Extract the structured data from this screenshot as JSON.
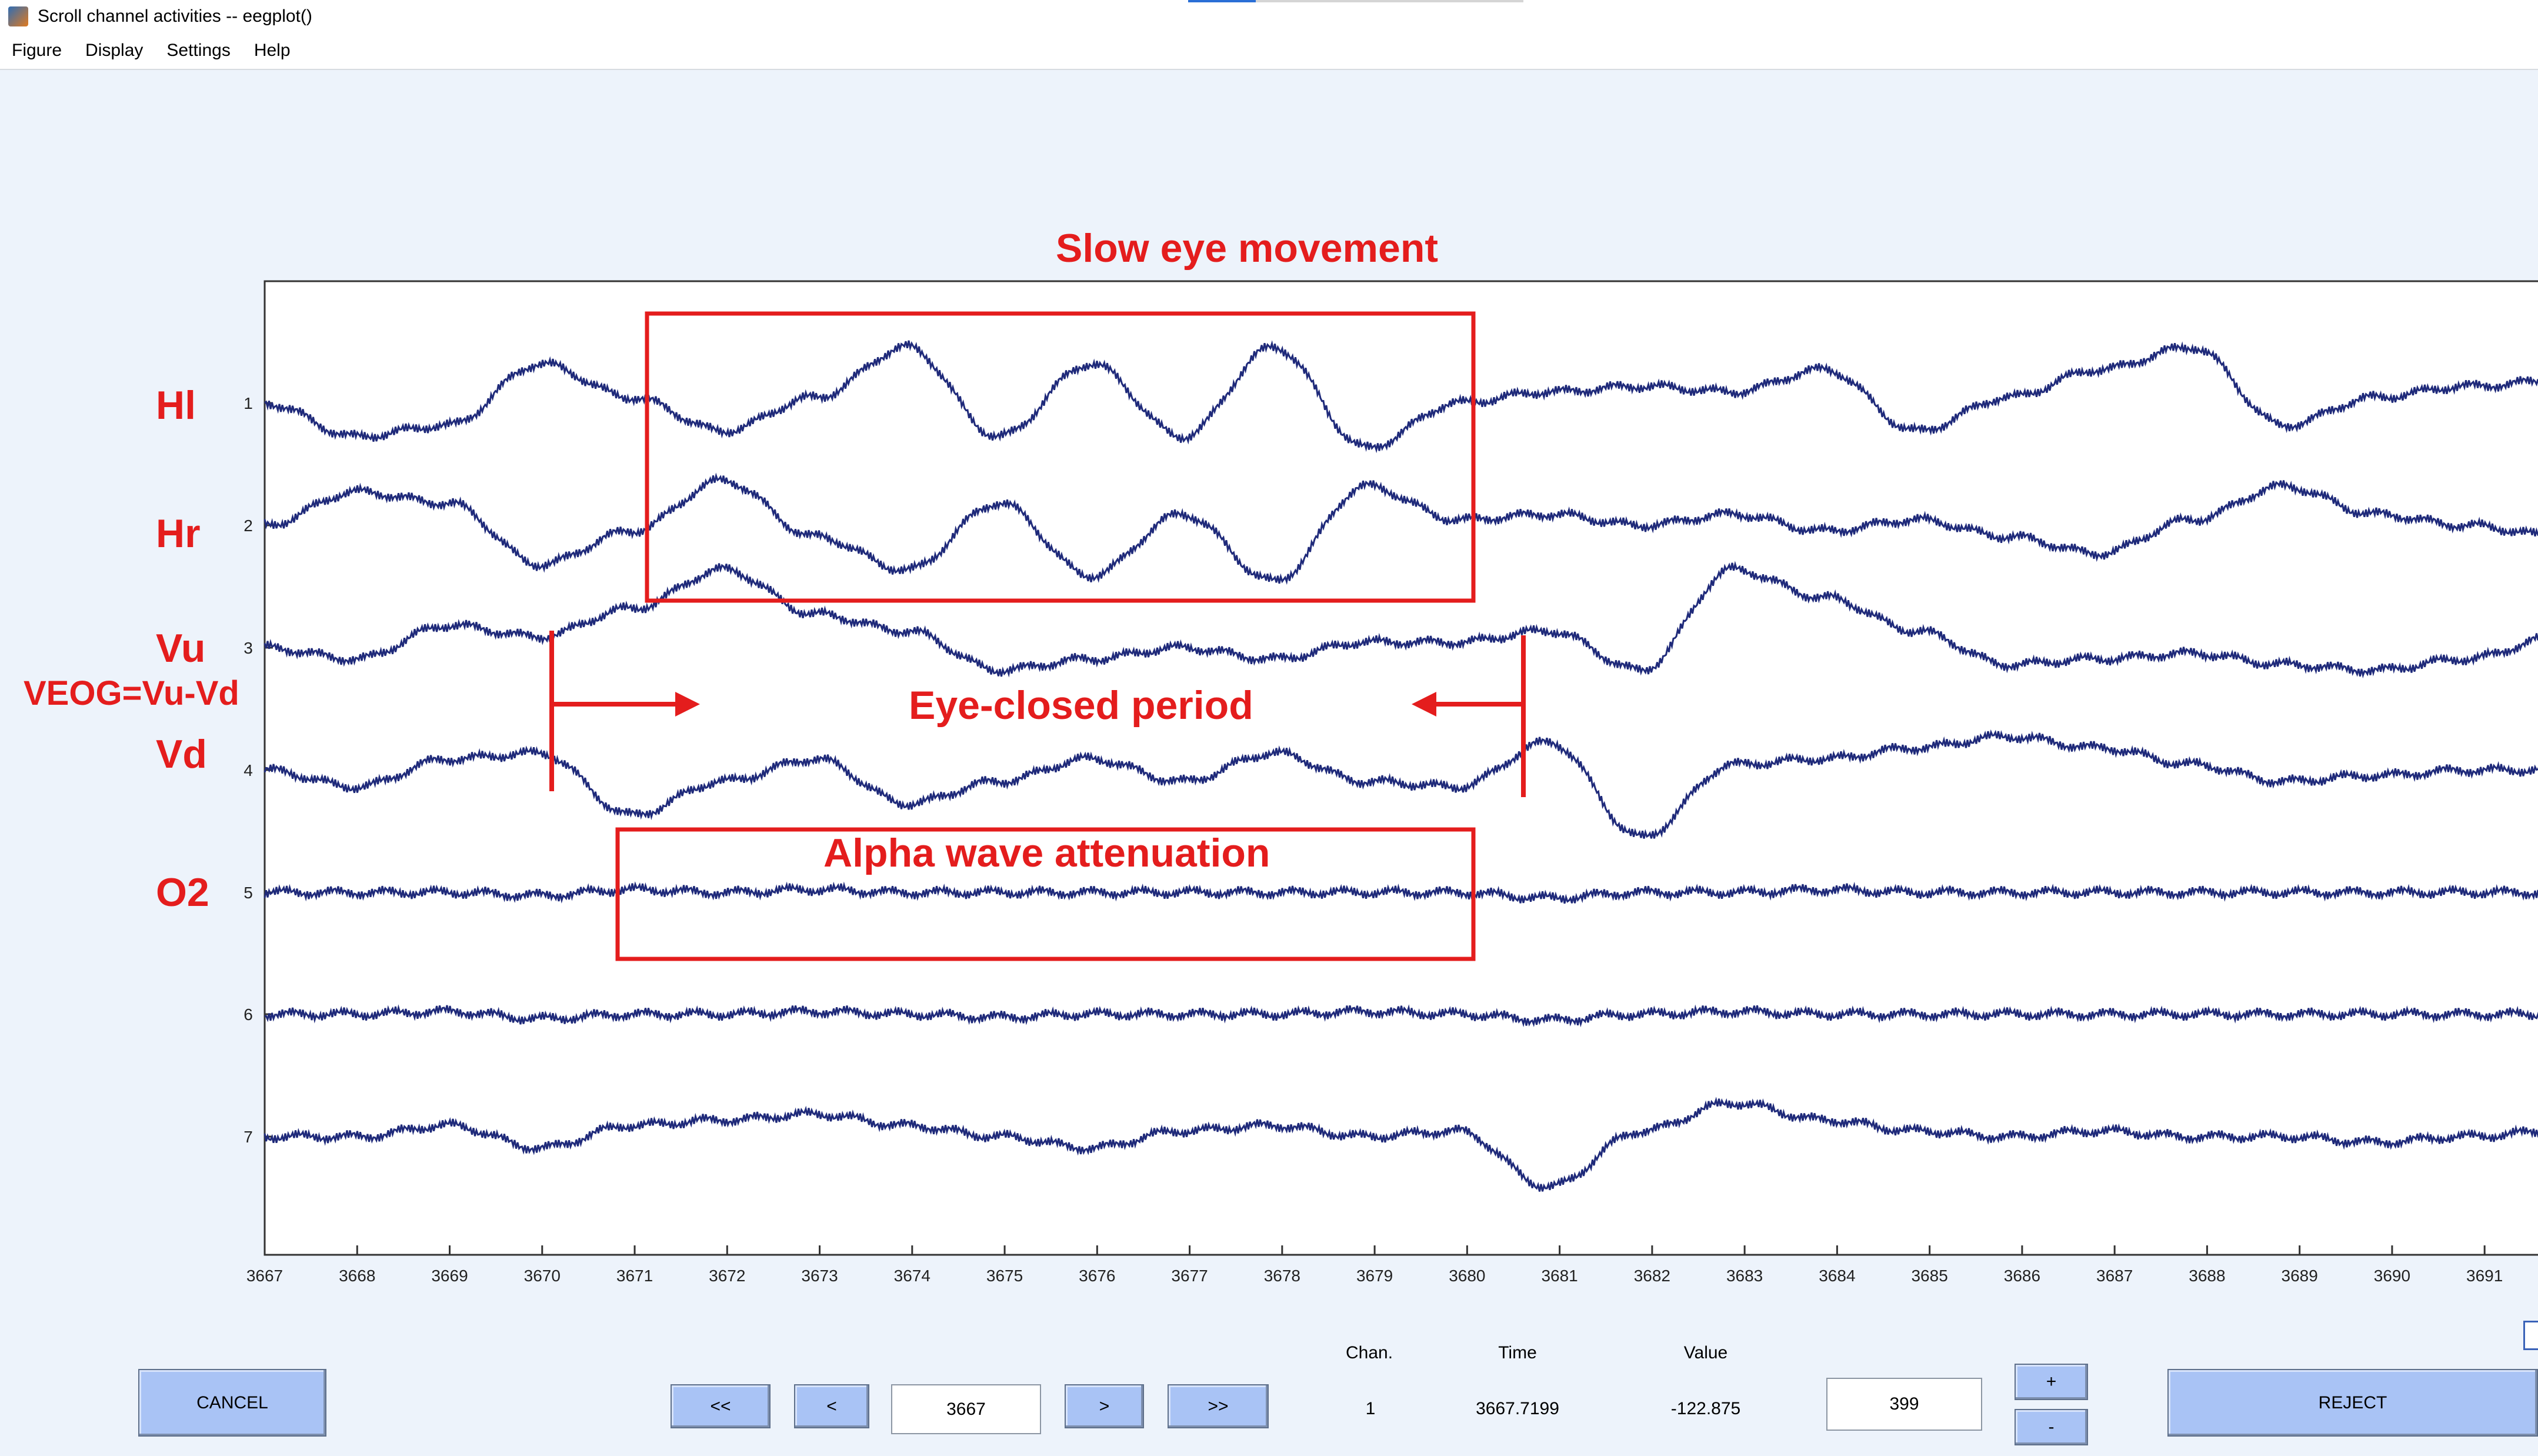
{
  "window": {
    "title": "Scroll channel activities -- eegplot()"
  },
  "menu": [
    "Figure",
    "Display",
    "Settings",
    "Help"
  ],
  "channel_labels": [
    "Hl",
    "Hr",
    "Vu",
    "Vd",
    "O2"
  ],
  "veog_label": "VEOG=Vu-Vd",
  "annotations": {
    "slow_eye": "Slow eye movement",
    "eye_closed": "Eye-closed period",
    "alpha": "Alpha wave attenuation"
  },
  "chart_data": {
    "type": "line",
    "xlim": [
      3667,
      3691.8
    ],
    "x_ticks": [
      "3667",
      "3668",
      "3669",
      "3670",
      "3671",
      "3672",
      "3673",
      "3674",
      "3675",
      "3676",
      "3677",
      "3678",
      "3679",
      "3680",
      "3681",
      "3682",
      "3683",
      "3684",
      "3685",
      "3686",
      "3687",
      "3688",
      "3689",
      "3690",
      "3691"
    ],
    "y_ticks": [
      "1",
      "2",
      "3",
      "4",
      "5",
      "6",
      "7"
    ],
    "series": [
      {
        "values": [
          0,
          -0.6,
          -0.4,
          0.7,
          0.1,
          -0.5,
          0.1,
          1,
          -0.6,
          0.7,
          -0.6,
          1,
          -0.8,
          0,
          0.2,
          0.3,
          0.2,
          0.6,
          -0.5,
          0.1,
          0.6,
          1,
          -0.4,
          0.1,
          0.3,
          0.4
        ]
      },
      {
        "values": [
          0,
          0.6,
          0.4,
          -0.7,
          -0.1,
          0.8,
          -0.2,
          -0.8,
          0.4,
          -0.9,
          0.2,
          -1,
          0.7,
          0.1,
          0.2,
          0,
          0.2,
          -0.1,
          0.1,
          -0.2,
          -0.5,
          0.1,
          0.7,
          0.2,
          0,
          -0.2
        ]
      },
      {
        "values": [
          0,
          -0.2,
          0.4,
          0.2,
          0.7,
          1.4,
          0.6,
          0.3,
          -0.4,
          -0.2,
          0,
          -0.2,
          0.1,
          0.1,
          0.3,
          -0.4,
          1.4,
          0.9,
          0.3,
          -0.3,
          -0.2,
          -0.1,
          -0.3,
          -0.4,
          -0.2,
          0.2
        ]
      },
      {
        "values": [
          0,
          -0.3,
          0.2,
          0.3,
          -0.8,
          -0.2,
          0.2,
          -0.6,
          -0.2,
          0.2,
          -0.2,
          0.3,
          -0.2,
          -0.3,
          0.5,
          -1.2,
          0.1,
          0.2,
          0.4,
          0.6,
          0.4,
          0.1,
          -0.2,
          -0.1,
          0,
          0
        ]
      },
      {
        "values": [
          0,
          0,
          0,
          -0.05,
          0.05,
          0,
          0.05,
          0,
          0,
          0,
          0,
          0,
          0,
          0,
          -0.1,
          0,
          0,
          0.05,
          0,
          0,
          0,
          0,
          0,
          0,
          0,
          0
        ]
      },
      {
        "values": [
          0,
          0,
          0.05,
          -0.08,
          0,
          0,
          0.05,
          0,
          -0.05,
          0,
          0,
          0,
          0.05,
          0,
          -0.1,
          0,
          0.05,
          0,
          0,
          0,
          0,
          0,
          0,
          0,
          0,
          0
        ]
      },
      {
        "values": [
          0,
          0,
          0.2,
          -0.2,
          0.2,
          0.3,
          0.4,
          0.2,
          0,
          -0.2,
          0.1,
          0.2,
          0,
          0.1,
          -0.9,
          0.1,
          0.6,
          0.3,
          0.1,
          0,
          0.1,
          0,
          0,
          -0.1,
          0,
          0.1
        ]
      }
    ]
  },
  "controls": {
    "cancel": "CANCEL",
    "prev_page": "<<",
    "prev": "<",
    "position": "3667",
    "next": ">",
    "next_page": ">>",
    "chan_header": "Chan.",
    "time_header": "Time",
    "value_header": "Value",
    "chan_value": "1",
    "time_value": "3667.7199",
    "value_value": "-122.875",
    "scale": "399",
    "plus": "+",
    "minus": "-",
    "reject": "REJECT"
  }
}
